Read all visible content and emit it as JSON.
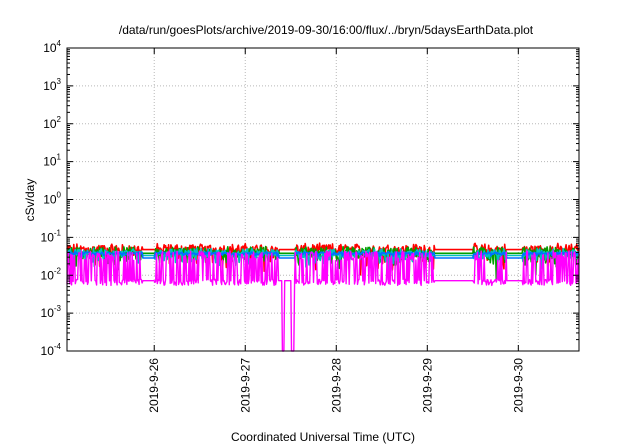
{
  "chart_data": {
    "type": "line",
    "title": "/data/run/goesPlots/archive/2019-09-30/16:00/flux/../bryn/5daysEarthData.plot",
    "xlabel": "Coordinated Universal Time (UTC)",
    "ylabel": "cSv/day",
    "yscale": "log",
    "ylim": [
      0.0001,
      10000
    ],
    "ytick_labels": [
      {
        "base": "10",
        "exp": "-4"
      },
      {
        "base": "10",
        "exp": "-3"
      },
      {
        "base": "10",
        "exp": "-2"
      },
      {
        "base": "10",
        "exp": "-1"
      },
      {
        "base": "10",
        "exp": "0"
      },
      {
        "base": "10",
        "exp": "1"
      },
      {
        "base": "10",
        "exp": "2"
      },
      {
        "base": "10",
        "exp": "3"
      },
      {
        "base": "10",
        "exp": "4"
      }
    ],
    "xlim": [
      "2019-09-25 01:00",
      "2019-09-30 16:00"
    ],
    "xtick_labels": [
      "2019-9-26",
      "2019-9-27",
      "2019-9-28",
      "2019-9-29",
      "2019-9-30"
    ],
    "grid": true,
    "data_gaps": [
      [
        "2019-09-25 21:00",
        "2019-09-26 00:00"
      ],
      [
        "2019-09-27 09:00",
        "2019-09-27 13:00"
      ],
      [
        "2019-09-29 02:00",
        "2019-09-29 12:00"
      ],
      [
        "2019-09-29 21:00",
        "2019-09-30 01:00"
      ]
    ],
    "dropout_times": [
      "2019-09-27 10:00",
      "2019-09-27 12:30"
    ],
    "dropout_value": 0.0001,
    "series": [
      {
        "color": "#ff0000",
        "upper": 0.06,
        "lower": 0.004,
        "noisy_level": 0.05
      },
      {
        "color": "#00a000",
        "upper": 0.05,
        "lower": 0.0055,
        "noisy_level": 0.04
      },
      {
        "color": "#00c0c0",
        "upper": 0.045,
        "lower": 0.01,
        "noisy_level": 0.035
      },
      {
        "color": "#0070ff",
        "upper": 0.04,
        "lower": 0.03,
        "noisy_level": 0.03
      },
      {
        "color": "#ff00ff",
        "upper": 0.04,
        "lower": 0.006,
        "noisy_level": 0.008
      }
    ]
  }
}
